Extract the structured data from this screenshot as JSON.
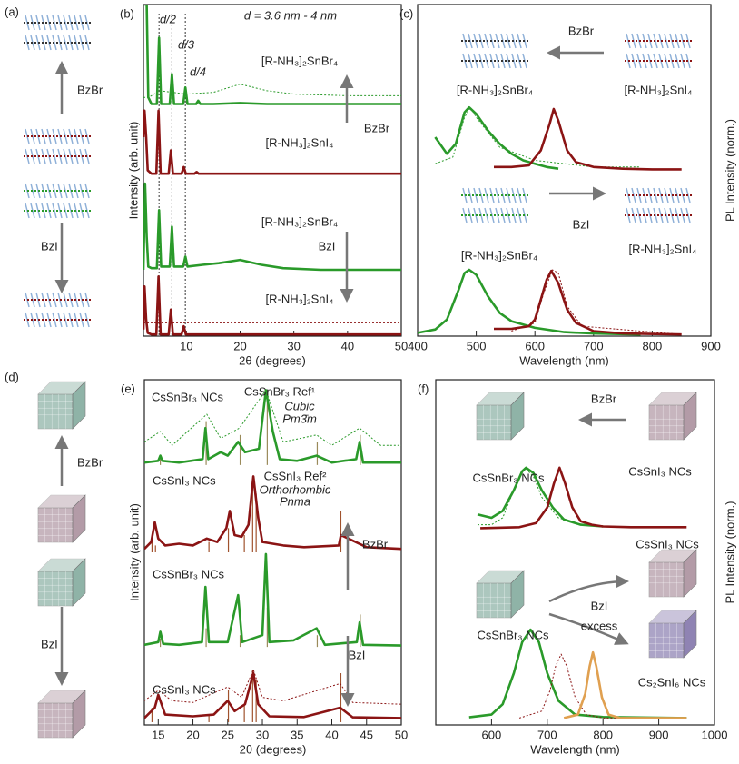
{
  "schematics": [
    {
      "label": "(a)",
      "upper_reagent": "BzBr",
      "lower_reagent": "BzI"
    },
    {
      "label": "(d)",
      "upper_reagent": "BzBr",
      "lower_reagent": "BzI"
    }
  ],
  "chart_data": [
    {
      "type": "line",
      "panel_label": "(b)",
      "xlabel": "2θ (degrees)",
      "ylabel": "Intensity (arb. unit)",
      "xlim": [
        2,
        50
      ],
      "xticks": [
        10,
        20,
        30,
        40,
        50
      ],
      "ylim": [
        0,
        100
      ],
      "vlines": [
        4.9,
        7.3,
        9.8
      ],
      "annotations": [
        "d/2",
        "d/3",
        "d/4",
        "d = 3.6 nm - 4 nm",
        "[R-NH₃]₂SnBr₄",
        "BzBr",
        "[R-NH₃]₂SnI₄",
        "[R-NH₃]₂SnBr₄",
        "BzI",
        "[R-NH₃]₂SnI₄"
      ],
      "series": [
        {
          "color": "#2a9a2a",
          "style": "dotted",
          "x": [
            2,
            3,
            5,
            10,
            15,
            20,
            25,
            30,
            40,
            50
          ],
          "values": [
            72,
            72,
            74,
            73,
            73.5,
            76,
            74,
            73,
            72.5,
            72.5
          ]
        },
        {
          "color": "#2a9a2a",
          "style": "solid",
          "x": [
            2,
            2.3,
            2.6,
            2.9,
            3.5,
            4.5,
            4.9,
            5.3,
            6.9,
            7.3,
            7.7,
            9.4,
            9.8,
            10.2,
            11.8,
            12.2,
            12.6,
            15,
            20,
            25,
            30,
            40,
            50
          ],
          "values": [
            100,
            100,
            100,
            72,
            70,
            70,
            90,
            70,
            70,
            79,
            70,
            70,
            75,
            70,
            70,
            71,
            70,
            70,
            70.3,
            70,
            70,
            70,
            70
          ]
        },
        {
          "color": "#8b1414",
          "style": "solid",
          "x": [
            2,
            2.2,
            2.5,
            2.8,
            3.5,
            4.4,
            4.8,
            5.2,
            6.7,
            7.1,
            7.5,
            9.1,
            9.5,
            9.9,
            11.5,
            11.9,
            12.3,
            20,
            30,
            50
          ],
          "values": [
            60,
            68,
            60,
            50,
            49,
            49,
            68,
            49,
            49,
            56,
            49,
            49,
            51,
            49,
            49,
            49.5,
            49,
            49,
            49,
            49
          ]
        },
        {
          "color": "#2a9a2a",
          "style": "solid",
          "x": [
            2,
            2.3,
            2.6,
            2.9,
            3.5,
            4.5,
            4.9,
            5.3,
            6.9,
            7.3,
            7.7,
            9.4,
            9.8,
            10.2,
            13,
            16,
            20,
            24,
            28,
            35,
            50
          ],
          "values": [
            20,
            46,
            30,
            21,
            20.5,
            20.5,
            38,
            21,
            21,
            33,
            21,
            21,
            24,
            21,
            21.5,
            22,
            23,
            21.5,
            20.5,
            20,
            20
          ]
        },
        {
          "color": "#8b1414",
          "style": "dotted",
          "x": [
            2,
            10,
            50
          ],
          "values": [
            4,
            4,
            4
          ]
        },
        {
          "color": "#8b1414",
          "style": "solid",
          "x": [
            2,
            2.2,
            2.5,
            2.8,
            3.5,
            4.4,
            4.8,
            5.2,
            6.7,
            7.1,
            7.5,
            9.1,
            9.5,
            9.9,
            15,
            30,
            50
          ],
          "values": [
            2,
            15,
            5,
            1,
            0.5,
            0.5,
            18,
            0.5,
            0.5,
            8,
            0.5,
            0.5,
            3,
            0.5,
            0.5,
            0.5,
            0.5
          ]
        }
      ]
    },
    {
      "type": "line",
      "panel_label": "(c)",
      "xlabel": "Wavelength (nm)",
      "ylabel": "PL Intensity (norm.)",
      "xlim": [
        400,
        900
      ],
      "xticks": [
        400,
        500,
        600,
        700,
        800,
        900
      ],
      "ylim": [
        0,
        100
      ],
      "annotations": [
        "BzBr",
        "[R-NH₃]₂SnBr₄",
        "[R-NH₃]₂SnI₄",
        "BzI",
        "[R-NH₃]₂SnBr₄",
        "[R-NH₃]₂SnI₄"
      ],
      "series": [
        {
          "color": "#2a9a2a",
          "style": "dotted",
          "x": [
            430,
            460,
            480,
            490,
            500,
            540,
            600,
            700,
            780
          ],
          "values": [
            52,
            54,
            66,
            69,
            66,
            57,
            53,
            51,
            51
          ]
        },
        {
          "color": "#2a9a2a",
          "style": "solid",
          "x": [
            430,
            450,
            465,
            480,
            488,
            500,
            520,
            540,
            560,
            580,
            600,
            620,
            640
          ],
          "values": [
            60,
            55,
            58,
            67.5,
            69,
            67,
            62,
            58,
            55,
            53,
            52,
            51,
            50.5
          ]
        },
        {
          "color": "#8b1414",
          "style": "solid",
          "x": [
            530,
            560,
            590,
            610,
            625,
            632,
            640,
            655,
            670,
            700,
            750,
            800,
            850
          ],
          "values": [
            51,
            51,
            51.5,
            56,
            64,
            68.5,
            65,
            56,
            52.5,
            51,
            50.5,
            50.3,
            50.3
          ]
        },
        {
          "color": "#2a9a2a",
          "style": "solid",
          "x": [
            400,
            430,
            450,
            470,
            480,
            488,
            500,
            520,
            540,
            560,
            600,
            650,
            700,
            780
          ],
          "values": [
            1,
            2,
            5,
            14,
            19,
            20,
            18.5,
            12,
            7,
            4.5,
            2.5,
            1.2,
            0.8,
            0.5
          ]
        },
        {
          "color": "#8b1414",
          "style": "dotted",
          "x": [
            560,
            600,
            615,
            630,
            640,
            655,
            680,
            850
          ],
          "values": [
            1.5,
            4,
            13,
            20,
            19,
            9,
            3,
            0.5
          ]
        },
        {
          "color": "#8b1414",
          "style": "solid",
          "x": [
            530,
            560,
            590,
            600,
            610,
            620,
            628,
            640,
            655,
            670,
            700,
            750,
            850
          ],
          "values": [
            2.2,
            2.2,
            3,
            5,
            11,
            17,
            19.7,
            16,
            8,
            4,
            1.5,
            0.8,
            0.5
          ]
        }
      ]
    },
    {
      "type": "line",
      "panel_label": "(e)",
      "xlabel": "2θ (degrees)",
      "ylabel": "Intensity (arb. unit)",
      "xlim": [
        13,
        50
      ],
      "xticks": [
        15,
        20,
        25,
        30,
        35,
        40,
        45,
        50
      ],
      "ylim": [
        0,
        100
      ],
      "annotations": [
        "CsSnBr₃ NCs",
        "CsSnBr₃ Ref¹",
        "Cubic",
        "Pm3̄m",
        "CsSnI₃ NCs",
        "CsSnI₃ Ref²",
        "Orthorhombic",
        "Pnma",
        "BzBr",
        "CsSnBr₃ NCs",
        "BzI",
        "CsSnI₃ NCs"
      ],
      "sticks": [
        {
          "color": "#9a8a5a",
          "base": 75.3,
          "x": [
            15.3,
            21.9,
            26.8,
            30.7,
            37.9,
            44.1
          ],
          "values": [
            78,
            88,
            84,
            97,
            82,
            84
          ]
        },
        {
          "color": "#a0522d",
          "base": 50,
          "x": [
            14.1,
            14.6,
            22.3,
            25.1,
            27.4,
            28.6,
            29.1,
            41.3
          ],
          "values": [
            53,
            52,
            53,
            57,
            55,
            70,
            67,
            62
          ]
        },
        {
          "color": "#9a8a5a",
          "base": 22.6,
          "x": [
            15.3,
            21.9,
            26.8,
            30.7,
            37.9,
            44.1
          ],
          "values": [
            25,
            28,
            26,
            34,
            26,
            32
          ]
        },
        {
          "color": "#a0522d",
          "base": 0.8,
          "x": [
            14.1,
            22.3,
            25.1,
            27.4,
            28.6,
            29.1,
            41.3
          ],
          "values": [
            5,
            3,
            10,
            6,
            16,
            13,
            15
          ]
        }
      ],
      "series": [
        {
          "color": "#2a9a2a",
          "style": "dotted",
          "x": [
            13,
            15.3,
            17,
            22,
            24,
            26.7,
            30.5,
            33,
            37.8,
            40,
            44,
            47,
            50
          ],
          "values": [
            82,
            85,
            81,
            90,
            83,
            86,
            97,
            82,
            84,
            81,
            86,
            81,
            81
          ]
        },
        {
          "color": "#2a9a2a",
          "style": "solid",
          "x": [
            13,
            15,
            15.3,
            15.6,
            18,
            21.4,
            21.8,
            22.2,
            24,
            25,
            26.5,
            27.5,
            29.5,
            30.5,
            31.5,
            32.5,
            35,
            37.8,
            40,
            43.5,
            44,
            44.5,
            47,
            50
          ],
          "values": [
            76,
            76.5,
            78,
            76.5,
            76,
            77,
            86,
            77,
            79,
            78,
            82,
            79,
            80,
            97,
            85,
            77,
            76.5,
            78,
            76,
            77,
            82,
            76,
            76,
            76
          ]
        },
        {
          "color": "#8b1414",
          "style": "solid",
          "x": [
            13,
            14,
            14.5,
            15,
            16,
            18,
            20,
            22,
            23.5,
            24.8,
            25.3,
            26,
            27,
            28,
            28.7,
            29.4,
            30,
            33,
            36,
            41,
            41.3,
            45,
            50
          ],
          "values": [
            51,
            53,
            58.7,
            54,
            52,
            52.5,
            52,
            54,
            53,
            57,
            62,
            55,
            54.5,
            58,
            72,
            60,
            53,
            52,
            51.5,
            52,
            55,
            51.5,
            51
          ]
        },
        {
          "color": "#2a9a2a",
          "style": "solid",
          "x": [
            13,
            15,
            15.3,
            15.7,
            18,
            21.3,
            21.8,
            22.3,
            25,
            26.5,
            27.1,
            30,
            30.5,
            31,
            34.5,
            37.8,
            39,
            43.6,
            44,
            44.5,
            50
          ],
          "values": [
            23.2,
            24,
            27,
            23.5,
            23.2,
            24,
            40,
            24,
            24,
            37.6,
            24,
            26,
            49.5,
            24,
            24.5,
            28,
            23.2,
            24,
            29.7,
            23.2,
            23
          ]
        },
        {
          "color": "#8b1414",
          "style": "dotted",
          "x": [
            13,
            15,
            17,
            20,
            22.7,
            25,
            27,
            28.7,
            30,
            33,
            41.2,
            43,
            50
          ],
          "values": [
            7,
            10,
            7,
            6.5,
            9,
            11,
            8,
            16,
            8,
            7,
            12,
            6.5,
            6
          ]
        },
        {
          "color": "#8b1414",
          "style": "solid",
          "x": [
            13,
            14.5,
            15,
            16,
            20,
            23,
            25,
            26,
            27.5,
            28.7,
            29.4,
            31,
            36,
            41.2,
            43,
            50
          ],
          "values": [
            2,
            5,
            8.7,
            3,
            2.5,
            3,
            7,
            4,
            6,
            15,
            6,
            2.5,
            2.3,
            5,
            2.2,
            2
          ]
        }
      ]
    },
    {
      "type": "line",
      "panel_label": "(f)",
      "xlabel": "Wavelength (nm)",
      "ylabel": "PL Intensity (norm.)",
      "xlim": [
        500,
        1000
      ],
      "xticks": [
        600,
        700,
        800,
        900,
        1000
      ],
      "ylim": [
        0,
        100
      ],
      "annotations": [
        "BzBr",
        "CsSnBr₃ NCs",
        "CsSnI₃ NCs",
        "CsSnI₃ NCs",
        "BzI",
        "excess",
        "CsSnBr₃ NCs",
        "Cs₂SnI₆ NCs"
      ],
      "series": [
        {
          "color": "#2a9a2a",
          "style": "dotted",
          "x": [
            575,
            600,
            620,
            640,
            660,
            675,
            690,
            720,
            760,
            800
          ],
          "values": [
            58,
            58,
            60,
            68,
            74.5,
            72,
            66,
            60,
            58,
            57.5
          ]
        },
        {
          "color": "#2a9a2a",
          "style": "solid",
          "x": [
            575,
            600,
            620,
            640,
            655,
            662,
            675,
            690,
            710,
            730,
            760,
            800
          ],
          "values": [
            61,
            60,
            62,
            68,
            73.5,
            74.5,
            73,
            68,
            63,
            59.5,
            58,
            57.5
          ]
        },
        {
          "color": "#8b1414",
          "style": "solid",
          "x": [
            580,
            650,
            680,
            700,
            712,
            722,
            732,
            745,
            760,
            780,
            800,
            850,
            950
          ],
          "values": [
            57,
            57.3,
            58.5,
            63,
            70,
            74.5,
            70,
            63,
            59,
            58,
            57.5,
            57.3,
            57.3
          ]
        },
        {
          "color": "#2a9a2a",
          "style": "solid",
          "x": [
            560,
            600,
            620,
            640,
            655,
            670,
            685,
            700,
            720,
            750,
            800,
            950
          ],
          "values": [
            2.2,
            3,
            6,
            15,
            24,
            27.6,
            24,
            15,
            7,
            3,
            2.3,
            2
          ]
        },
        {
          "color": "#8b1414",
          "style": "dotted",
          "x": [
            650,
            690,
            705,
            715,
            725,
            735,
            750,
            770,
            800,
            950
          ],
          "values": [
            2,
            4,
            10,
            17,
            20.5,
            17,
            8,
            3,
            2,
            2
          ]
        },
        {
          "color": "#e0a050",
          "style": "solid",
          "x": [
            730,
            755,
            768,
            776,
            782,
            788,
            798,
            810,
            830,
            950
          ],
          "values": [
            2,
            3,
            9,
            17,
            21,
            17,
            8,
            3,
            2,
            2
          ]
        }
      ]
    }
  ]
}
